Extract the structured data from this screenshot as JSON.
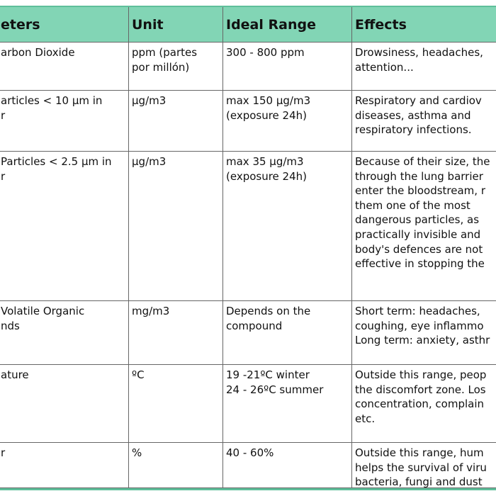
{
  "table": {
    "header": [
      "eters",
      "Unit",
      "Ideal Range",
      "Effects"
    ],
    "rows": [
      [
        "arbon Dioxide",
        "ppm (partes\npor millón)",
        "300 - 800 ppm",
        "Drowsiness, headaches,\nattention..."
      ],
      [
        "articles < 10 µm in\nr",
        "µg/m3",
        "max 150 µg/m3\n(exposure 24h)",
        "Respiratory and cardiov\ndiseases, asthma and\nrespiratory infections."
      ],
      [
        "Particles < 2.5 µm in\nr",
        "µg/m3",
        "max 35 µg/m3\n(exposure 24h)",
        "Because of their size, the\nthrough the lung barrier\nenter the bloodstream, r\nthem one of the most\ndangerous particles, as\npractically invisible and\nbody's defences are not\neffective in stopping the"
      ],
      [
        "Volatile Organic\nnds",
        "mg/m3",
        "Depends on the\ncompound",
        "Short term: headaches,\ncoughing, eye inflammo\nLong term: anxiety, asthr"
      ],
      [
        "ature",
        "ºC",
        "19 -21ºC winter\n24 - 26ºC summer",
        "Outside this range, peop\nthe discomfort zone. Los\nconcentration, complain\netc."
      ],
      [
        "r",
        "%",
        "40 - 60%",
        "Outside this range, hum\nhelps the survival of viru\nbacteria, fungi and dust"
      ]
    ]
  }
}
